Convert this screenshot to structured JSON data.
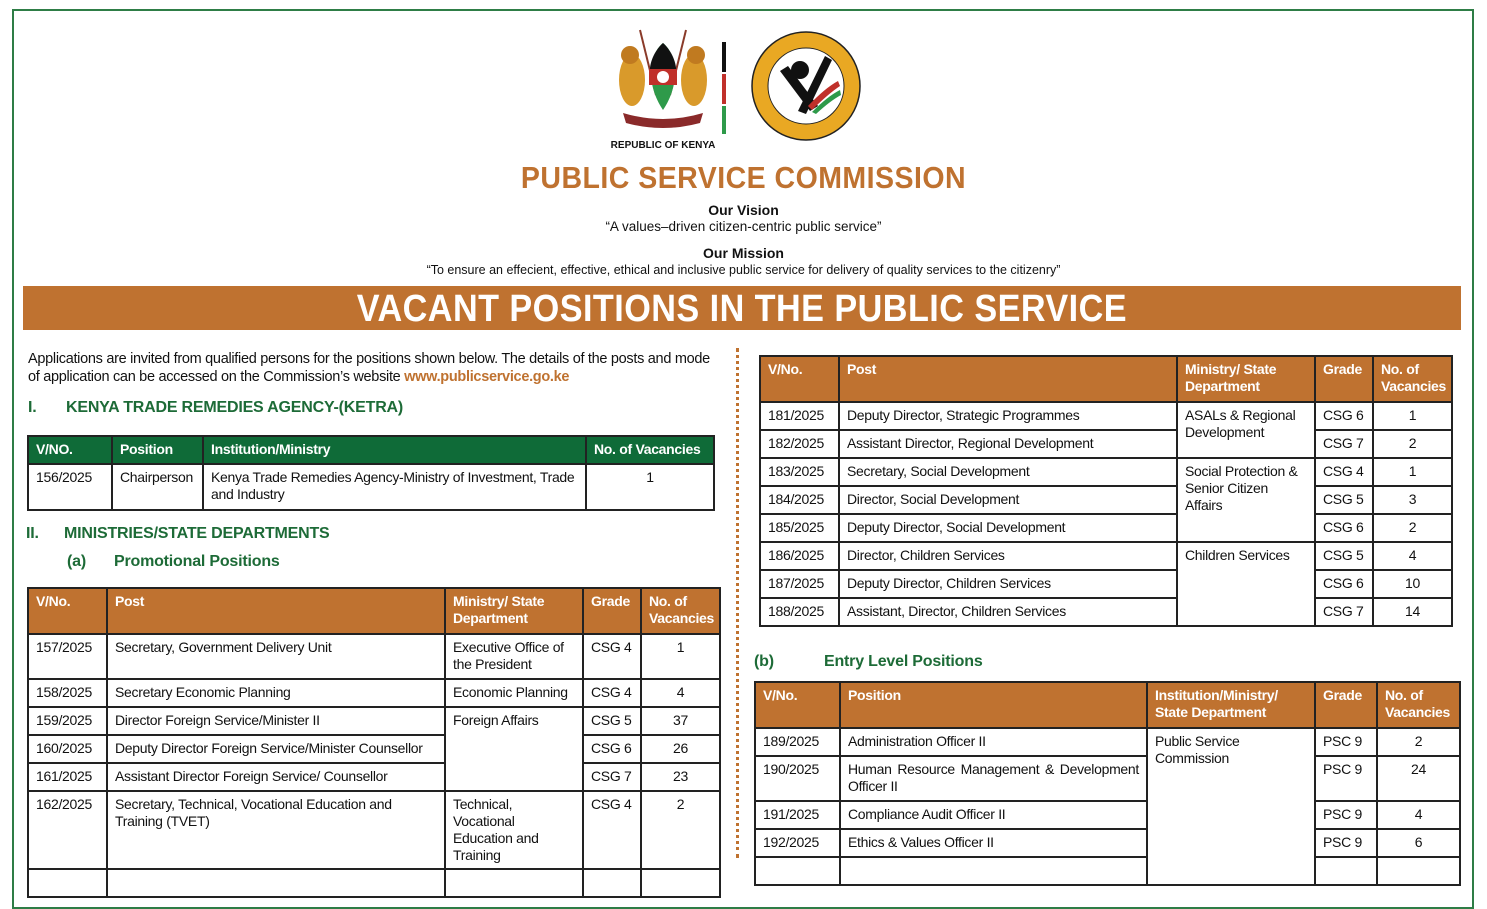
{
  "header": {
    "emblem_caption": "REPUBLIC OF KENYA",
    "seal_text": "PUBLIC SERVICE COMMISSION KENYA",
    "org_name": "PUBLIC SERVICE COMMISSION",
    "vision_label": "Our Vision",
    "vision": "“A values–driven citizen-centric public service”",
    "mission_label": "Our Mission",
    "mission": "“To ensure an effecient, effective, ethical and inclusive public service for delivery of quality services to the citizenry”",
    "banner": "VACANT POSITIONS IN THE PUBLIC SERVICE",
    "colors": {
      "brand": "#bf7230",
      "green": "#1d6b37"
    }
  },
  "intro": {
    "text": "Applications are invited from qualified persons for the positions shown below. The details of the posts and mode of application can be accessed on the Commission’s website ",
    "link": "www.publicservice.go.ke"
  },
  "section1": {
    "num": "I.",
    "title": "KENYA TRADE REMEDIES AGENCY-(KETRA)",
    "headers": [
      "V/NO.",
      "Position",
      "Institution/Ministry",
      "No. of Vacancies"
    ],
    "rows": [
      [
        "156/2025",
        "Chairperson",
        "Kenya Trade Remedies Agency-Ministry of  Investment, Trade and Industry",
        "1"
      ]
    ]
  },
  "section2": {
    "num": "II.",
    "title": "MINISTRIES/STATE DEPARTMENTS",
    "sub_num": "(a)",
    "sub_title": "Promotional Positions",
    "headers": [
      "V/No.",
      "Post",
      "Ministry/ State Department",
      "Grade",
      "No. of Vacancies"
    ],
    "rows": [
      [
        "157/2025",
        "Secretary, Government Delivery Unit",
        "Executive Office of the President",
        "CSG 4",
        "1"
      ],
      [
        "158/2025",
        "Secretary Economic Planning",
        "Economic Planning",
        "CSG 4",
        "4"
      ],
      [
        "159/2025",
        "Director Foreign Service/Minister II",
        "Foreign Affairs",
        "CSG 5",
        "37"
      ],
      [
        "160/2025",
        "Deputy Director Foreign Service/Minister Counsellor",
        "",
        "CSG 6",
        "26"
      ],
      [
        "161/2025",
        "Assistant Director Foreign Service/ Counsellor",
        "",
        "CSG 7",
        "23"
      ],
      [
        "162/2025",
        "Secretary, Technical, Vocational Education and Training (TVET)",
        "Technical, Vocational Education and Training",
        "CSG 4",
        "2"
      ],
      [
        "181/2025",
        "Deputy Director, Strategic Programmes",
        "ASALs & Regional Development",
        "CSG 6",
        "1"
      ],
      [
        "182/2025",
        "Assistant Director, Regional Development",
        "",
        "CSG 7",
        "2"
      ],
      [
        "183/2025",
        "Secretary, Social Development",
        "Social Protection & Senior Citizen Affairs",
        "CSG 4",
        "1"
      ],
      [
        "184/2025",
        "Director, Social Development",
        "",
        "CSG 5",
        "3"
      ],
      [
        "185/2025",
        "Deputy Director, Social Development",
        "",
        "CSG 6",
        "2"
      ],
      [
        "186/2025",
        "Director, Children Services",
        "Children Services",
        "CSG 5",
        "4"
      ],
      [
        "187/2025",
        "Deputy Director, Children Services",
        "",
        "CSG 6",
        "10"
      ],
      [
        "188/2025",
        "Assistant, Director, Children Services",
        "",
        "CSG 7",
        "14"
      ]
    ]
  },
  "section2b": {
    "sub_num": "(b)",
    "sub_title": "Entry Level Positions",
    "headers": [
      "V/No.",
      "Position",
      "Institution/Ministry/ State Department",
      "Grade",
      "No. of Vacancies"
    ],
    "rows": [
      [
        "189/2025",
        "Administration Officer II",
        "Public Service Commission",
        "PSC 9",
        "2"
      ],
      [
        "190/2025",
        "Human Resource Management & Development Officer II",
        "",
        "PSC 9",
        "24"
      ],
      [
        "191/2025",
        "Compliance Audit Officer II",
        "",
        "PSC 9",
        "4"
      ],
      [
        "192/2025",
        "Ethics & Values Officer II",
        "",
        "PSC 9",
        "6"
      ]
    ]
  }
}
